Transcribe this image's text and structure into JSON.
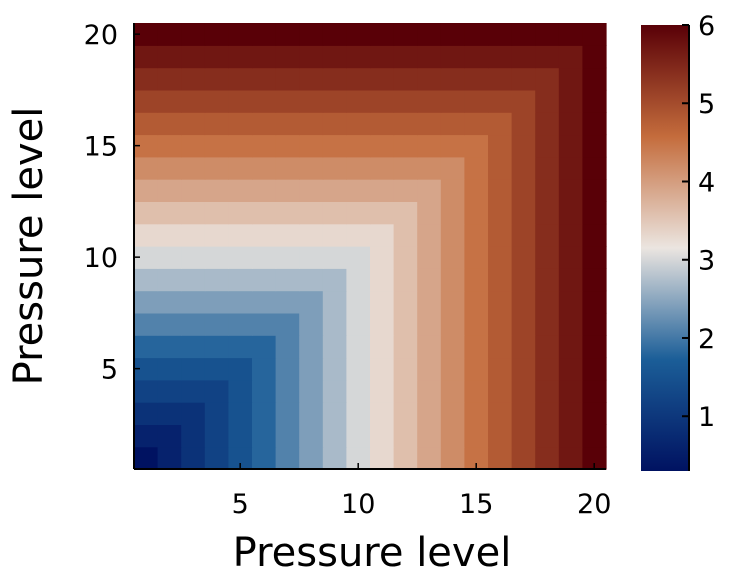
{
  "chart_data": {
    "type": "heatmap",
    "title": "",
    "xlabel": "Pressure level",
    "ylabel": "Pressure level",
    "x": [
      1,
      2,
      3,
      4,
      5,
      6,
      7,
      8,
      9,
      10,
      11,
      12,
      13,
      14,
      15,
      16,
      17,
      18,
      19,
      20
    ],
    "y": [
      1,
      2,
      3,
      4,
      5,
      6,
      7,
      8,
      9,
      10,
      11,
      12,
      13,
      14,
      15,
      16,
      17,
      18,
      19,
      20
    ],
    "value_rule": "z[i][j] = 0.3 * max(x_j, y_i)",
    "z": [
      [
        0.3,
        0.6,
        0.9,
        1.2,
        1.5,
        1.8,
        2.1,
        2.4,
        2.7,
        3.0,
        3.3,
        3.6,
        3.9,
        4.2,
        4.5,
        4.8,
        5.1,
        5.4,
        5.7,
        6.0
      ],
      [
        0.6,
        0.6,
        0.9,
        1.2,
        1.5,
        1.8,
        2.1,
        2.4,
        2.7,
        3.0,
        3.3,
        3.6,
        3.9,
        4.2,
        4.5,
        4.8,
        5.1,
        5.4,
        5.7,
        6.0
      ],
      [
        0.9,
        0.9,
        0.9,
        1.2,
        1.5,
        1.8,
        2.1,
        2.4,
        2.7,
        3.0,
        3.3,
        3.6,
        3.9,
        4.2,
        4.5,
        4.8,
        5.1,
        5.4,
        5.7,
        6.0
      ],
      [
        1.2,
        1.2,
        1.2,
        1.2,
        1.5,
        1.8,
        2.1,
        2.4,
        2.7,
        3.0,
        3.3,
        3.6,
        3.9,
        4.2,
        4.5,
        4.8,
        5.1,
        5.4,
        5.7,
        6.0
      ],
      [
        1.5,
        1.5,
        1.5,
        1.5,
        1.5,
        1.8,
        2.1,
        2.4,
        2.7,
        3.0,
        3.3,
        3.6,
        3.9,
        4.2,
        4.5,
        4.8,
        5.1,
        5.4,
        5.7,
        6.0
      ],
      [
        1.8,
        1.8,
        1.8,
        1.8,
        1.8,
        1.8,
        2.1,
        2.4,
        2.7,
        3.0,
        3.3,
        3.6,
        3.9,
        4.2,
        4.5,
        4.8,
        5.1,
        5.4,
        5.7,
        6.0
      ],
      [
        2.1,
        2.1,
        2.1,
        2.1,
        2.1,
        2.1,
        2.1,
        2.4,
        2.7,
        3.0,
        3.3,
        3.6,
        3.9,
        4.2,
        4.5,
        4.8,
        5.1,
        5.4,
        5.7,
        6.0
      ],
      [
        2.4,
        2.4,
        2.4,
        2.4,
        2.4,
        2.4,
        2.4,
        2.4,
        2.7,
        3.0,
        3.3,
        3.6,
        3.9,
        4.2,
        4.5,
        4.8,
        5.1,
        5.4,
        5.7,
        6.0
      ],
      [
        2.7,
        2.7,
        2.7,
        2.7,
        2.7,
        2.7,
        2.7,
        2.7,
        2.7,
        3.0,
        3.3,
        3.6,
        3.9,
        4.2,
        4.5,
        4.8,
        5.1,
        5.4,
        5.7,
        6.0
      ],
      [
        3.0,
        3.0,
        3.0,
        3.0,
        3.0,
        3.0,
        3.0,
        3.0,
        3.0,
        3.0,
        3.3,
        3.6,
        3.9,
        4.2,
        4.5,
        4.8,
        5.1,
        5.4,
        5.7,
        6.0
      ],
      [
        3.3,
        3.3,
        3.3,
        3.3,
        3.3,
        3.3,
        3.3,
        3.3,
        3.3,
        3.3,
        3.3,
        3.6,
        3.9,
        4.2,
        4.5,
        4.8,
        5.1,
        5.4,
        5.7,
        6.0
      ],
      [
        3.6,
        3.6,
        3.6,
        3.6,
        3.6,
        3.6,
        3.6,
        3.6,
        3.6,
        3.6,
        3.6,
        3.6,
        3.9,
        4.2,
        4.5,
        4.8,
        5.1,
        5.4,
        5.7,
        6.0
      ],
      [
        3.9,
        3.9,
        3.9,
        3.9,
        3.9,
        3.9,
        3.9,
        3.9,
        3.9,
        3.9,
        3.9,
        3.9,
        3.9,
        4.2,
        4.5,
        4.8,
        5.1,
        5.4,
        5.7,
        6.0
      ],
      [
        4.2,
        4.2,
        4.2,
        4.2,
        4.2,
        4.2,
        4.2,
        4.2,
        4.2,
        4.2,
        4.2,
        4.2,
        4.2,
        4.2,
        4.5,
        4.8,
        5.1,
        5.4,
        5.7,
        6.0
      ],
      [
        4.5,
        4.5,
        4.5,
        4.5,
        4.5,
        4.5,
        4.5,
        4.5,
        4.5,
        4.5,
        4.5,
        4.5,
        4.5,
        4.5,
        4.5,
        4.8,
        5.1,
        5.4,
        5.7,
        6.0
      ],
      [
        4.8,
        4.8,
        4.8,
        4.8,
        4.8,
        4.8,
        4.8,
        4.8,
        4.8,
        4.8,
        4.8,
        4.8,
        4.8,
        4.8,
        4.8,
        4.8,
        5.1,
        5.4,
        5.7,
        6.0
      ],
      [
        5.1,
        5.1,
        5.1,
        5.1,
        5.1,
        5.1,
        5.1,
        5.1,
        5.1,
        5.1,
        5.1,
        5.1,
        5.1,
        5.1,
        5.1,
        5.1,
        5.1,
        5.4,
        5.7,
        6.0
      ],
      [
        5.4,
        5.4,
        5.4,
        5.4,
        5.4,
        5.4,
        5.4,
        5.4,
        5.4,
        5.4,
        5.4,
        5.4,
        5.4,
        5.4,
        5.4,
        5.4,
        5.4,
        5.4,
        5.7,
        6.0
      ],
      [
        5.7,
        5.7,
        5.7,
        5.7,
        5.7,
        5.7,
        5.7,
        5.7,
        5.7,
        5.7,
        5.7,
        5.7,
        5.7,
        5.7,
        5.7,
        5.7,
        5.7,
        5.7,
        5.7,
        6.0
      ],
      [
        6.0,
        6.0,
        6.0,
        6.0,
        6.0,
        6.0,
        6.0,
        6.0,
        6.0,
        6.0,
        6.0,
        6.0,
        6.0,
        6.0,
        6.0,
        6.0,
        6.0,
        6.0,
        6.0,
        6.0
      ]
    ],
    "xlim": [
      0.5,
      20.5
    ],
    "ylim": [
      0.5,
      20.5
    ],
    "xticks": [
      5,
      10,
      15,
      20
    ],
    "xtick_labels": [
      "5",
      "10",
      "15",
      "20"
    ],
    "yticks": [
      5,
      10,
      15,
      20
    ],
    "ytick_labels": [
      "5",
      "10",
      "15",
      "20"
    ],
    "colorbar": {
      "range": [
        0.3,
        6.0
      ],
      "ticks": [
        1,
        2,
        3,
        4,
        5,
        6
      ],
      "tick_labels": [
        "1",
        "2",
        "3",
        "4",
        "5",
        "6"
      ],
      "colormap": "diverging blue-white-red (vik)",
      "color_stops": [
        {
          "v": 0.0,
          "c": "#001261"
        },
        {
          "v": 0.25,
          "c": "#1b5e98"
        },
        {
          "v": 0.5,
          "c": "#ebe5e0"
        },
        {
          "v": 0.75,
          "c": "#c46c3c"
        },
        {
          "v": 1.0,
          "c": "#590007"
        }
      ]
    },
    "grid": false
  }
}
